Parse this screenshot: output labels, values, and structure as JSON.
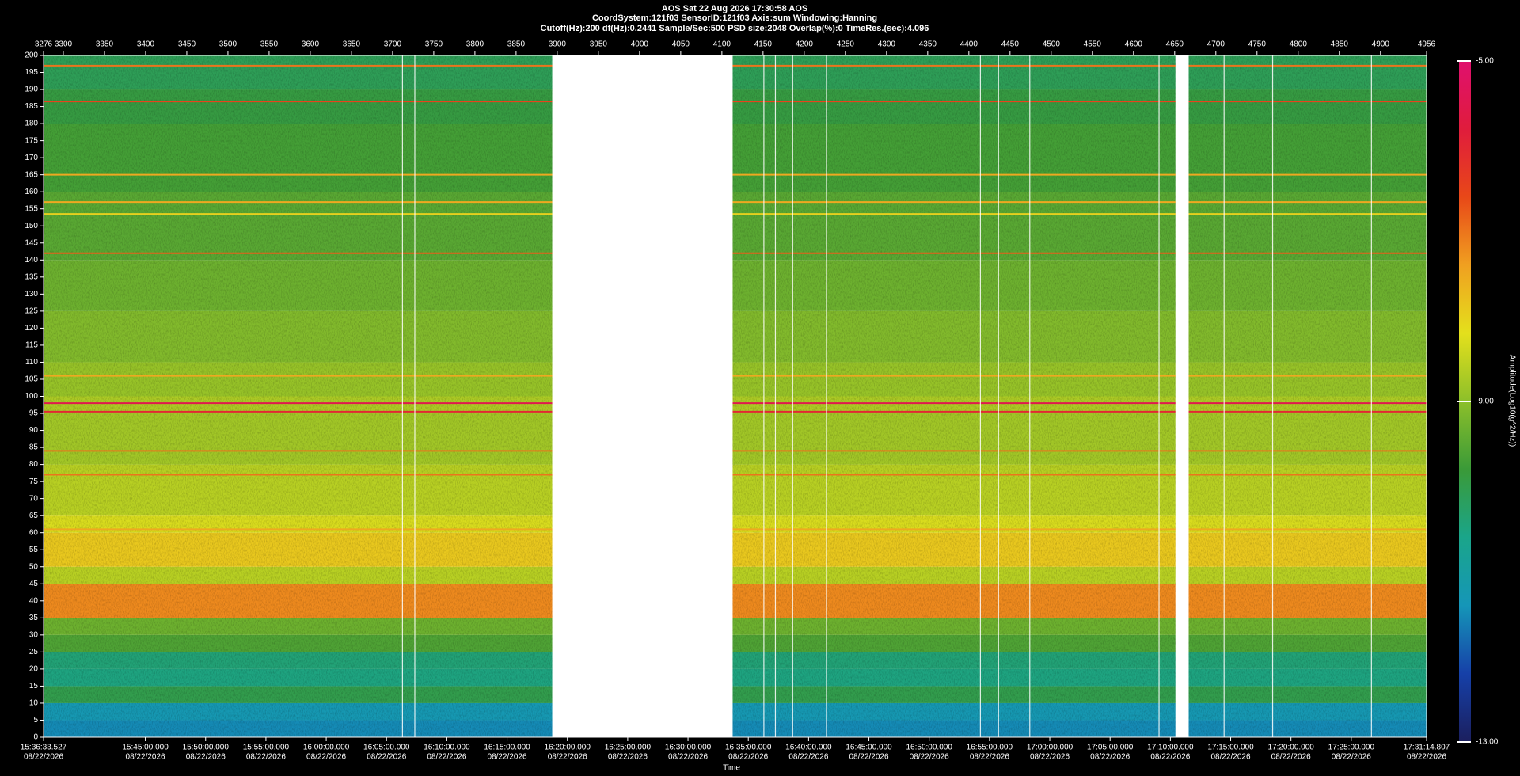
{
  "header": {
    "line1": "AOS  Sat 22 Aug 2026 17:30:58  AOS",
    "line2": "CoordSystem:121f03   SensorID:121f03   Axis:sum   Windowing:Hanning",
    "line3": "Cutoff(Hz):200   df(Hz):0.2441   Sample/Sec:500   PSD size:2048   Overlap(%):0   TimeRes.(sec):4.096"
  },
  "chart_data": {
    "type": "spectrogram",
    "xlabel": "Time",
    "colorbar_label": "Amplitude(Log10(g^2/Hz))",
    "xlim": [
      3276,
      4956
    ],
    "xticks": [
      3276,
      3300,
      3350,
      3400,
      3450,
      3500,
      3550,
      3600,
      3650,
      3700,
      3750,
      3800,
      3850,
      3900,
      3950,
      4000,
      4050,
      4100,
      4150,
      4200,
      4250,
      4300,
      4350,
      4400,
      4450,
      4500,
      4550,
      4600,
      4650,
      4700,
      4750,
      4800,
      4850,
      4900,
      4956
    ],
    "time_ticks": [
      {
        "value": 3276,
        "label": "15:36:33.527",
        "date": "08/22/2026"
      },
      {
        "value": 3399.65,
        "label": "15:45:00.000",
        "date": "08/22/2026"
      },
      {
        "value": 3472.89,
        "label": "15:50:00.000",
        "date": "08/22/2026"
      },
      {
        "value": 3546.14,
        "label": "15:55:00.000",
        "date": "08/22/2026"
      },
      {
        "value": 3619.38,
        "label": "16:00:00.000",
        "date": "08/22/2026"
      },
      {
        "value": 3692.62,
        "label": "16:05:00.000",
        "date": "08/22/2026"
      },
      {
        "value": 3765.86,
        "label": "16:10:00.000",
        "date": "08/22/2026"
      },
      {
        "value": 3839.1,
        "label": "16:15:00.000",
        "date": "08/22/2026"
      },
      {
        "value": 3912.35,
        "label": "16:20:00.000",
        "date": "08/22/2026"
      },
      {
        "value": 3985.59,
        "label": "16:25:00.000",
        "date": "08/22/2026"
      },
      {
        "value": 4058.83,
        "label": "16:30:00.000",
        "date": "08/22/2026"
      },
      {
        "value": 4132.07,
        "label": "16:35:00.000",
        "date": "08/22/2026"
      },
      {
        "value": 4205.31,
        "label": "16:40:00.000",
        "date": "08/22/2026"
      },
      {
        "value": 4278.56,
        "label": "16:45:00.000",
        "date": "08/22/2026"
      },
      {
        "value": 4351.8,
        "label": "16:50:00.000",
        "date": "08/22/2026"
      },
      {
        "value": 4425.04,
        "label": "16:55:00.000",
        "date": "08/22/2026"
      },
      {
        "value": 4498.28,
        "label": "17:00:00.000",
        "date": "08/22/2026"
      },
      {
        "value": 4571.52,
        "label": "17:05:00.000",
        "date": "08/22/2026"
      },
      {
        "value": 4644.77,
        "label": "17:10:00.000",
        "date": "08/22/2026"
      },
      {
        "value": 4718.01,
        "label": "17:15:00.000",
        "date": "08/22/2026"
      },
      {
        "value": 4791.25,
        "label": "17:20:00.000",
        "date": "08/22/2026"
      },
      {
        "value": 4864.49,
        "label": "17:25:00.000",
        "date": "08/22/2026"
      },
      {
        "value": 4956,
        "label": "17:31:14.807",
        "date": "08/22/2026"
      }
    ],
    "ylim": [
      0,
      200
    ],
    "yticks": [
      0,
      5,
      10,
      15,
      20,
      25,
      30,
      35,
      40,
      45,
      50,
      55,
      60,
      65,
      70,
      75,
      80,
      85,
      90,
      95,
      100,
      105,
      110,
      115,
      120,
      125,
      130,
      135,
      140,
      145,
      150,
      155,
      160,
      165,
      170,
      175,
      180,
      185,
      190,
      195,
      200
    ],
    "zlim": [
      -13,
      -5
    ],
    "zticks": [
      {
        "value": -5,
        "label": "-5.00"
      },
      {
        "value": -9,
        "label": "-9.00"
      },
      {
        "value": -13,
        "label": "-13.00"
      }
    ],
    "colormap": [
      "#1b1f5e",
      "#1640a8",
      "#1596b8",
      "#1aa58a",
      "#3a9a38",
      "#8cbf2a",
      "#e4e01c",
      "#f0a020",
      "#e84818",
      "#e01c3c",
      "#e0106e"
    ],
    "bins": [
      0,
      5,
      10,
      15,
      20,
      25,
      30,
      35,
      45,
      50,
      60,
      65,
      80,
      95,
      100,
      110,
      125,
      140,
      160,
      180,
      190,
      200
    ],
    "levels": [
      -11.5,
      -11.3,
      -10,
      -10.5,
      -10.4,
      -9.6,
      -9.3,
      -7.2,
      -8.6,
      -7.9,
      -8.3,
      -8.6,
      -8.8,
      -8.7,
      -8.9,
      -9.1,
      -9.3,
      -9.5,
      -9.7,
      -9.9,
      -10.1
    ],
    "tones": [
      {
        "freq": 197,
        "level": -7
      },
      {
        "freq": 186.5,
        "level": -6.5
      },
      {
        "freq": 165,
        "level": -7.5
      },
      {
        "freq": 157,
        "level": -7.5
      },
      {
        "freq": 153.5,
        "level": -8
      },
      {
        "freq": 142,
        "level": -6.8
      },
      {
        "freq": 106,
        "level": -7.5
      },
      {
        "freq": 98,
        "level": -5.5
      },
      {
        "freq": 95.5,
        "level": -6
      },
      {
        "freq": 84,
        "level": -7
      },
      {
        "freq": 77,
        "level": -7
      },
      {
        "freq": 61,
        "level": -7.5
      }
    ],
    "gaps": [
      [
        3894,
        4113
      ],
      [
        4651,
        4667
      ]
    ],
    "dropouts": [
      3712,
      3727,
      4151,
      4165,
      4186,
      4227,
      4414,
      4436,
      4474,
      4631,
      4710,
      4769,
      4889
    ]
  }
}
